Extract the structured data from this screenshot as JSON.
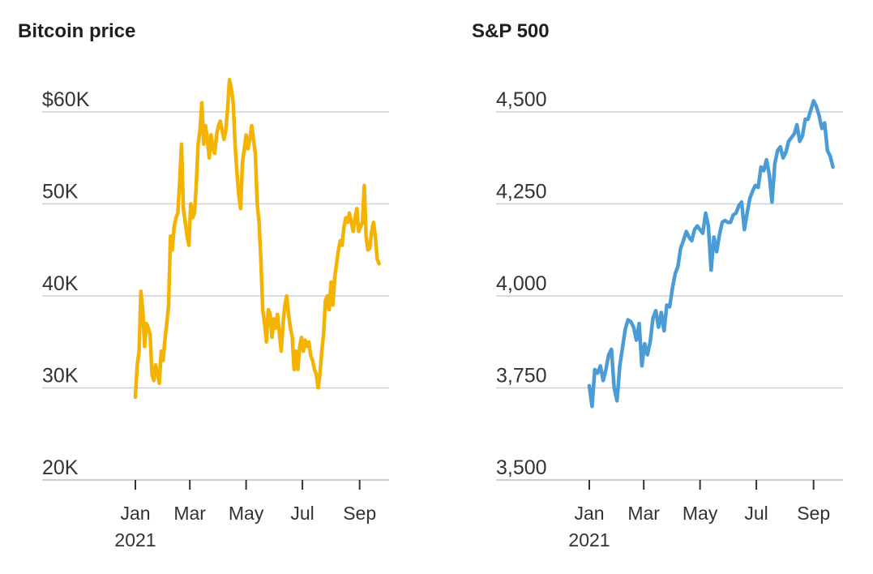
{
  "chart_data": [
    {
      "type": "line",
      "title": "Bitcoin price",
      "xlabel": "",
      "ylabel": "",
      "color": "#F5B301",
      "ylim": [
        20000,
        60000
      ],
      "xlim": [
        "2021-01-01",
        "2021-09-25"
      ],
      "y_ticks": [
        20000,
        30000,
        40000,
        50000,
        60000
      ],
      "y_tick_labels": [
        "20K",
        "30K",
        "40K",
        "50K",
        "$60K"
      ],
      "x_ticks": [
        "2021-01-01",
        "2021-03-01",
        "2021-05-01",
        "2021-07-01",
        "2021-09-01"
      ],
      "x_tick_labels": [
        "Jan",
        "Mar",
        "May",
        "Jul",
        "Sep"
      ],
      "x_sublabel": "2021",
      "grid": true,
      "series": [
        {
          "x": [
            "2021-01-01",
            "2021-01-03",
            "2021-01-05",
            "2021-01-07",
            "2021-01-09",
            "2021-01-11",
            "2021-01-13",
            "2021-01-15",
            "2021-01-17",
            "2021-01-19",
            "2021-01-21",
            "2021-01-23",
            "2021-01-25",
            "2021-01-27",
            "2021-01-29",
            "2021-01-31",
            "2021-02-02",
            "2021-02-04",
            "2021-02-06",
            "2021-02-08",
            "2021-02-10",
            "2021-02-12",
            "2021-02-14",
            "2021-02-16",
            "2021-02-18",
            "2021-02-20",
            "2021-02-22",
            "2021-02-24",
            "2021-02-26",
            "2021-02-28",
            "2021-03-02",
            "2021-03-04",
            "2021-03-06",
            "2021-03-08",
            "2021-03-10",
            "2021-03-12",
            "2021-03-14",
            "2021-03-16",
            "2021-03-18",
            "2021-03-20",
            "2021-03-22",
            "2021-03-24",
            "2021-03-26",
            "2021-03-28",
            "2021-03-30",
            "2021-04-01",
            "2021-04-03",
            "2021-04-05",
            "2021-04-07",
            "2021-04-09",
            "2021-04-11",
            "2021-04-13",
            "2021-04-15",
            "2021-04-17",
            "2021-04-19",
            "2021-04-21",
            "2021-04-23",
            "2021-04-25",
            "2021-04-27",
            "2021-04-29",
            "2021-05-01",
            "2021-05-03",
            "2021-05-05",
            "2021-05-07",
            "2021-05-09",
            "2021-05-11",
            "2021-05-13",
            "2021-05-15",
            "2021-05-17",
            "2021-05-19",
            "2021-05-21",
            "2021-05-23",
            "2021-05-25",
            "2021-05-27",
            "2021-05-29",
            "2021-05-31",
            "2021-06-02",
            "2021-06-04",
            "2021-06-06",
            "2021-06-08",
            "2021-06-10",
            "2021-06-12",
            "2021-06-14",
            "2021-06-16",
            "2021-06-18",
            "2021-06-20",
            "2021-06-22",
            "2021-06-24",
            "2021-06-26",
            "2021-06-28",
            "2021-06-30",
            "2021-07-02",
            "2021-07-04",
            "2021-07-06",
            "2021-07-08",
            "2021-07-10",
            "2021-07-12",
            "2021-07-14",
            "2021-07-16",
            "2021-07-18",
            "2021-07-20",
            "2021-07-22",
            "2021-07-24",
            "2021-07-26",
            "2021-07-28",
            "2021-07-30",
            "2021-08-01",
            "2021-08-03",
            "2021-08-05",
            "2021-08-07",
            "2021-08-09",
            "2021-08-11",
            "2021-08-13",
            "2021-08-15",
            "2021-08-17",
            "2021-08-19",
            "2021-08-21",
            "2021-08-23",
            "2021-08-25",
            "2021-08-27",
            "2021-08-29",
            "2021-08-31",
            "2021-09-02",
            "2021-09-04",
            "2021-09-06",
            "2021-09-08",
            "2021-09-10",
            "2021-09-12",
            "2021-09-14",
            "2021-09-16",
            "2021-09-18",
            "2021-09-20",
            "2021-09-22"
          ],
          "y": [
            29000,
            32500,
            34000,
            40500,
            38500,
            34500,
            37000,
            36500,
            35800,
            31500,
            30800,
            32500,
            31500,
            30500,
            34000,
            33000,
            35200,
            37000,
            39000,
            46500,
            45000,
            47500,
            48500,
            49000,
            52500,
            56500,
            49500,
            48000,
            46500,
            45500,
            50000,
            48500,
            49000,
            52000,
            56500,
            58000,
            61000,
            56500,
            58500,
            57000,
            55000,
            57500,
            56000,
            55500,
            57500,
            58500,
            59000,
            58000,
            57000,
            58000,
            60500,
            63500,
            62500,
            61000,
            56500,
            53500,
            51000,
            49500,
            54500,
            56000,
            57500,
            56000,
            57000,
            58500,
            57000,
            55500,
            50000,
            48000,
            44000,
            38500,
            37000,
            35000,
            38500,
            38000,
            35500,
            37500,
            36500,
            38000,
            36000,
            34000,
            37000,
            39000,
            40000,
            38000,
            36500,
            35500,
            32000,
            34000,
            32000,
            34500,
            35500,
            34000,
            35200,
            34500,
            35000,
            33500,
            33000,
            32000,
            31500,
            30000,
            31500,
            34000,
            36000,
            39500,
            40000,
            38500,
            41500,
            39000,
            42000,
            43500,
            45000,
            46000,
            45500,
            47500,
            48500,
            48000,
            49000,
            48000,
            47000,
            48500,
            49500,
            47000,
            47500,
            48000,
            52000,
            46500,
            45000,
            45200,
            47000,
            48000,
            46500,
            44000,
            43500
          ]
        }
      ]
    },
    {
      "type": "line",
      "title": "S&P 500",
      "xlabel": "",
      "ylabel": "",
      "color": "#4A9BD6",
      "ylim": [
        3500,
        4500
      ],
      "xlim": [
        "2021-01-01",
        "2021-09-25"
      ],
      "y_ticks": [
        3500,
        3750,
        4000,
        4250,
        4500
      ],
      "y_tick_labels": [
        "3,500",
        "3,750",
        "4,000",
        "4,250",
        "4,500"
      ],
      "x_ticks": [
        "2021-01-01",
        "2021-03-01",
        "2021-05-01",
        "2021-07-01",
        "2021-09-01"
      ],
      "x_tick_labels": [
        "Jan",
        "Mar",
        "May",
        "Jul",
        "Sep"
      ],
      "x_sublabel": "2021",
      "grid": true,
      "series": [
        {
          "x": [
            "2021-01-01",
            "2021-01-04",
            "2021-01-07",
            "2021-01-10",
            "2021-01-13",
            "2021-01-16",
            "2021-01-19",
            "2021-01-22",
            "2021-01-25",
            "2021-01-28",
            "2021-01-31",
            "2021-02-03",
            "2021-02-06",
            "2021-02-09",
            "2021-02-12",
            "2021-02-15",
            "2021-02-18",
            "2021-02-21",
            "2021-02-24",
            "2021-02-27",
            "2021-03-02",
            "2021-03-05",
            "2021-03-08",
            "2021-03-11",
            "2021-03-14",
            "2021-03-17",
            "2021-03-20",
            "2021-03-23",
            "2021-03-26",
            "2021-03-29",
            "2021-04-01",
            "2021-04-04",
            "2021-04-07",
            "2021-04-10",
            "2021-04-13",
            "2021-04-16",
            "2021-04-19",
            "2021-04-22",
            "2021-04-25",
            "2021-04-28",
            "2021-05-01",
            "2021-05-04",
            "2021-05-07",
            "2021-05-10",
            "2021-05-13",
            "2021-05-16",
            "2021-05-19",
            "2021-05-22",
            "2021-05-25",
            "2021-05-28",
            "2021-05-31",
            "2021-06-03",
            "2021-06-06",
            "2021-06-09",
            "2021-06-12",
            "2021-06-15",
            "2021-06-18",
            "2021-06-21",
            "2021-06-24",
            "2021-06-27",
            "2021-06-30",
            "2021-07-03",
            "2021-07-06",
            "2021-07-09",
            "2021-07-12",
            "2021-07-15",
            "2021-07-18",
            "2021-07-21",
            "2021-07-24",
            "2021-07-27",
            "2021-07-30",
            "2021-08-02",
            "2021-08-05",
            "2021-08-08",
            "2021-08-11",
            "2021-08-14",
            "2021-08-17",
            "2021-08-20",
            "2021-08-23",
            "2021-08-26",
            "2021-08-29",
            "2021-09-01",
            "2021-09-04",
            "2021-09-07",
            "2021-09-10",
            "2021-09-13",
            "2021-09-16",
            "2021-09-19",
            "2021-09-22"
          ],
          "y": [
            3756,
            3700,
            3800,
            3790,
            3810,
            3770,
            3800,
            3840,
            3855,
            3750,
            3715,
            3810,
            3860,
            3910,
            3935,
            3930,
            3915,
            3880,
            3925,
            3810,
            3870,
            3840,
            3875,
            3940,
            3960,
            3915,
            3955,
            3905,
            3975,
            3970,
            4020,
            4060,
            4080,
            4130,
            4150,
            4175,
            4160,
            4150,
            4180,
            4190,
            4180,
            4170,
            4225,
            4190,
            4070,
            4160,
            4120,
            4165,
            4200,
            4205,
            4200,
            4200,
            4220,
            4225,
            4245,
            4255,
            4180,
            4225,
            4265,
            4285,
            4300,
            4295,
            4350,
            4340,
            4370,
            4330,
            4255,
            4360,
            4395,
            4405,
            4375,
            4390,
            4420,
            4430,
            4440,
            4465,
            4420,
            4435,
            4480,
            4480,
            4505,
            4530,
            4515,
            4490,
            4455,
            4470,
            4395,
            4380,
            4350
          ]
        }
      ]
    }
  ]
}
